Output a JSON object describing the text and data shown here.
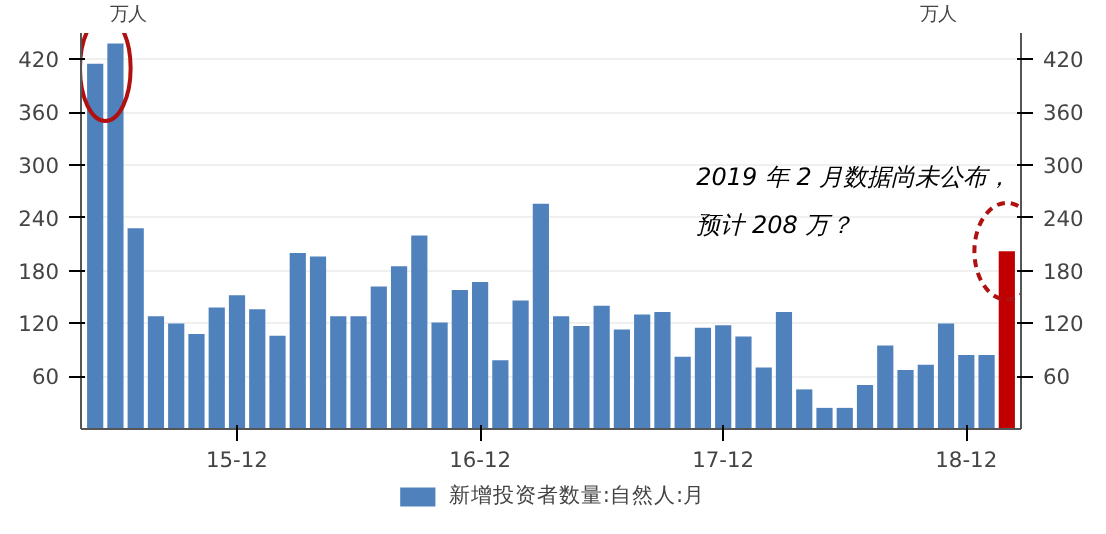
{
  "chart_data": {
    "type": "bar",
    "categories": [
      null,
      null,
      null,
      null,
      null,
      null,
      null,
      "15-12",
      null,
      null,
      null,
      null,
      null,
      null,
      null,
      null,
      null,
      null,
      null,
      "16-12",
      null,
      null,
      null,
      null,
      null,
      null,
      null,
      null,
      null,
      null,
      null,
      "17-12",
      null,
      null,
      null,
      null,
      null,
      null,
      null,
      null,
      null,
      null,
      null,
      "18-12",
      null,
      null
    ],
    "series": [
      {
        "name": "新增投资者数量:自然人:月",
        "color": "#4f81bd",
        "values": [
          415,
          438,
          228,
          128,
          120,
          108,
          138,
          152,
          136,
          106,
          200,
          196,
          128,
          128,
          162,
          185,
          220,
          121,
          158,
          167,
          78,
          146,
          256,
          128,
          117,
          140,
          113,
          130,
          133,
          82,
          115,
          118,
          105,
          70,
          133,
          45,
          24,
          24,
          50,
          95,
          67,
          73,
          120,
          84,
          84,
          202
        ],
        "colors": [
          "#4f81bd",
          "#4f81bd",
          "#4f81bd",
          "#4f81bd",
          "#4f81bd",
          "#4f81bd",
          "#4f81bd",
          "#4f81bd",
          "#4f81bd",
          "#4f81bd",
          "#4f81bd",
          "#4f81bd",
          "#4f81bd",
          "#4f81bd",
          "#4f81bd",
          "#4f81bd",
          "#4f81bd",
          "#4f81bd",
          "#4f81bd",
          "#4f81bd",
          "#4f81bd",
          "#4f81bd",
          "#4f81bd",
          "#4f81bd",
          "#4f81bd",
          "#4f81bd",
          "#4f81bd",
          "#4f81bd",
          "#4f81bd",
          "#4f81bd",
          "#4f81bd",
          "#4f81bd",
          "#4f81bd",
          "#4f81bd",
          "#4f81bd",
          "#4f81bd",
          "#4f81bd",
          "#4f81bd",
          "#4f81bd",
          "#4f81bd",
          "#4f81bd",
          "#4f81bd",
          "#4f81bd",
          "#4f81bd",
          "#4f81bd",
          "#c00000"
        ]
      }
    ],
    "ylabel": "万人",
    "y2label": "万人",
    "ylim": [
      0,
      450
    ],
    "yticks": [
      60,
      120,
      180,
      240,
      300,
      360,
      420
    ],
    "y2lim": [
      0,
      450
    ],
    "y2ticks": [
      60,
      120,
      180,
      240,
      300,
      360,
      420
    ],
    "annotations": [
      "2019 年 2 月数据尚未公布，",
      "预计 208 万？"
    ],
    "grid": "y",
    "legend": "bottom"
  }
}
